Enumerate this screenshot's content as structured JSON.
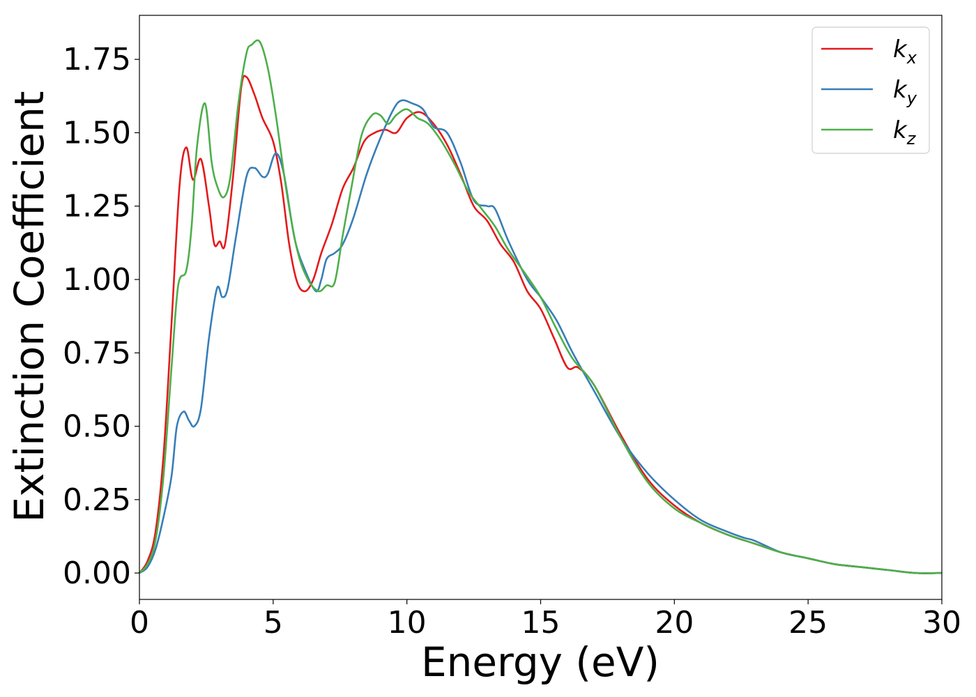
{
  "chart_data": {
    "type": "line",
    "xlabel": "Energy (eV)",
    "ylabel": "Extinction Coefficient",
    "xlim": [
      0,
      30
    ],
    "ylim": [
      -0.09,
      1.9
    ],
    "xticks": [
      0,
      5,
      10,
      15,
      20,
      25,
      30
    ],
    "xtick_labels": [
      "0",
      "5",
      "10",
      "15",
      "20",
      "25",
      "30"
    ],
    "yticks": [
      0,
      0.25,
      0.5,
      0.75,
      1.0,
      1.25,
      1.5,
      1.75
    ],
    "ytick_labels": [
      "0.00",
      "0.25",
      "0.50",
      "0.75",
      "1.00",
      "1.25",
      "1.50",
      "1.75"
    ],
    "grid": false,
    "legend_position": "top-right",
    "series": [
      {
        "name": "kx",
        "label_main": "k",
        "label_sub": "x",
        "color": "#e41a1c",
        "x": [
          0,
          0.3,
          0.6,
          0.9,
          1.2,
          1.5,
          1.75,
          2.0,
          2.3,
          2.6,
          2.8,
          3.0,
          3.2,
          3.5,
          3.8,
          4.0,
          4.3,
          4.6,
          5.0,
          5.3,
          5.6,
          5.9,
          6.2,
          6.5,
          6.8,
          7.2,
          7.6,
          8.0,
          8.4,
          8.8,
          9.2,
          9.6,
          10.0,
          10.5,
          11.0,
          11.5,
          12.0,
          12.5,
          13.0,
          13.5,
          14.0,
          14.5,
          15.0,
          15.5,
          16.0,
          16.4,
          17.0,
          18.0,
          19.0,
          20.0,
          21.0,
          22.0,
          23.0,
          24.0,
          25.0,
          26.0,
          27.0,
          28.0,
          29.0,
          30.0
        ],
        "y": [
          0.0,
          0.04,
          0.14,
          0.4,
          0.85,
          1.32,
          1.45,
          1.34,
          1.41,
          1.25,
          1.12,
          1.13,
          1.12,
          1.35,
          1.65,
          1.69,
          1.63,
          1.55,
          1.47,
          1.33,
          1.12,
          0.99,
          0.96,
          1.0,
          1.09,
          1.19,
          1.31,
          1.38,
          1.47,
          1.5,
          1.51,
          1.5,
          1.55,
          1.57,
          1.53,
          1.46,
          1.36,
          1.25,
          1.2,
          1.12,
          1.06,
          0.96,
          0.9,
          0.8,
          0.7,
          0.7,
          0.64,
          0.47,
          0.32,
          0.23,
          0.17,
          0.13,
          0.1,
          0.07,
          0.05,
          0.03,
          0.02,
          0.01,
          0.0,
          0.0
        ]
      },
      {
        "name": "ky",
        "label_main": "k",
        "label_sub": "y",
        "color": "#377eb8",
        "x": [
          0,
          0.3,
          0.6,
          0.9,
          1.2,
          1.4,
          1.65,
          1.85,
          2.05,
          2.3,
          2.6,
          2.9,
          3.1,
          3.3,
          3.6,
          4.0,
          4.3,
          4.6,
          4.8,
          5.1,
          5.4,
          5.8,
          6.2,
          6.6,
          6.8,
          7.0,
          7.3,
          7.6,
          8.0,
          8.5,
          9.0,
          9.5,
          9.8,
          10.2,
          10.6,
          11.0,
          11.5,
          12.0,
          12.5,
          13.0,
          13.3,
          13.8,
          14.5,
          15.0,
          15.6,
          16.2,
          17.0,
          18.0,
          19.0,
          20.0,
          21.0,
          22.0,
          22.6,
          23.0,
          24.0,
          25.0,
          26.0,
          27.0,
          28.0,
          29.0,
          30.0
        ],
        "y": [
          0.0,
          0.02,
          0.08,
          0.19,
          0.33,
          0.5,
          0.55,
          0.52,
          0.5,
          0.56,
          0.8,
          0.97,
          0.94,
          0.97,
          1.14,
          1.35,
          1.38,
          1.35,
          1.36,
          1.43,
          1.36,
          1.14,
          1.03,
          0.96,
          1.0,
          1.07,
          1.09,
          1.12,
          1.21,
          1.36,
          1.48,
          1.58,
          1.61,
          1.6,
          1.58,
          1.52,
          1.5,
          1.4,
          1.27,
          1.25,
          1.24,
          1.13,
          1.0,
          0.94,
          0.86,
          0.75,
          0.62,
          0.46,
          0.34,
          0.25,
          0.18,
          0.14,
          0.12,
          0.11,
          0.07,
          0.05,
          0.03,
          0.02,
          0.01,
          0.0,
          0.0
        ]
      },
      {
        "name": "kz",
        "label_main": "k",
        "label_sub": "z",
        "color": "#4daf4a",
        "x": [
          0,
          0.3,
          0.6,
          0.9,
          1.2,
          1.45,
          1.75,
          1.95,
          2.15,
          2.45,
          2.7,
          2.9,
          3.15,
          3.4,
          3.7,
          4.0,
          4.2,
          4.5,
          4.8,
          5.1,
          5.5,
          5.9,
          6.3,
          6.7,
          7.0,
          7.3,
          7.6,
          7.9,
          8.3,
          8.7,
          9.0,
          9.3,
          9.6,
          10.0,
          10.4,
          10.8,
          11.3,
          11.8,
          12.3,
          12.8,
          13.3,
          13.8,
          14.5,
          15.0,
          15.6,
          16.2,
          17.0,
          18.0,
          19.0,
          20.0,
          21.0,
          22.0,
          23.0,
          24.0,
          25.0,
          26.0,
          27.0,
          28.0,
          29.0,
          30.0
        ],
        "y": [
          0.0,
          0.03,
          0.11,
          0.33,
          0.7,
          0.98,
          1.03,
          1.18,
          1.45,
          1.6,
          1.4,
          1.32,
          1.28,
          1.35,
          1.6,
          1.77,
          1.8,
          1.81,
          1.72,
          1.56,
          1.3,
          1.1,
          1.0,
          0.96,
          0.98,
          0.99,
          1.15,
          1.3,
          1.49,
          1.56,
          1.56,
          1.53,
          1.56,
          1.58,
          1.55,
          1.53,
          1.47,
          1.39,
          1.3,
          1.24,
          1.18,
          1.1,
          1.01,
          0.94,
          0.83,
          0.73,
          0.64,
          0.46,
          0.31,
          0.22,
          0.17,
          0.13,
          0.1,
          0.07,
          0.05,
          0.03,
          0.02,
          0.01,
          0.0,
          0.0
        ]
      }
    ]
  }
}
